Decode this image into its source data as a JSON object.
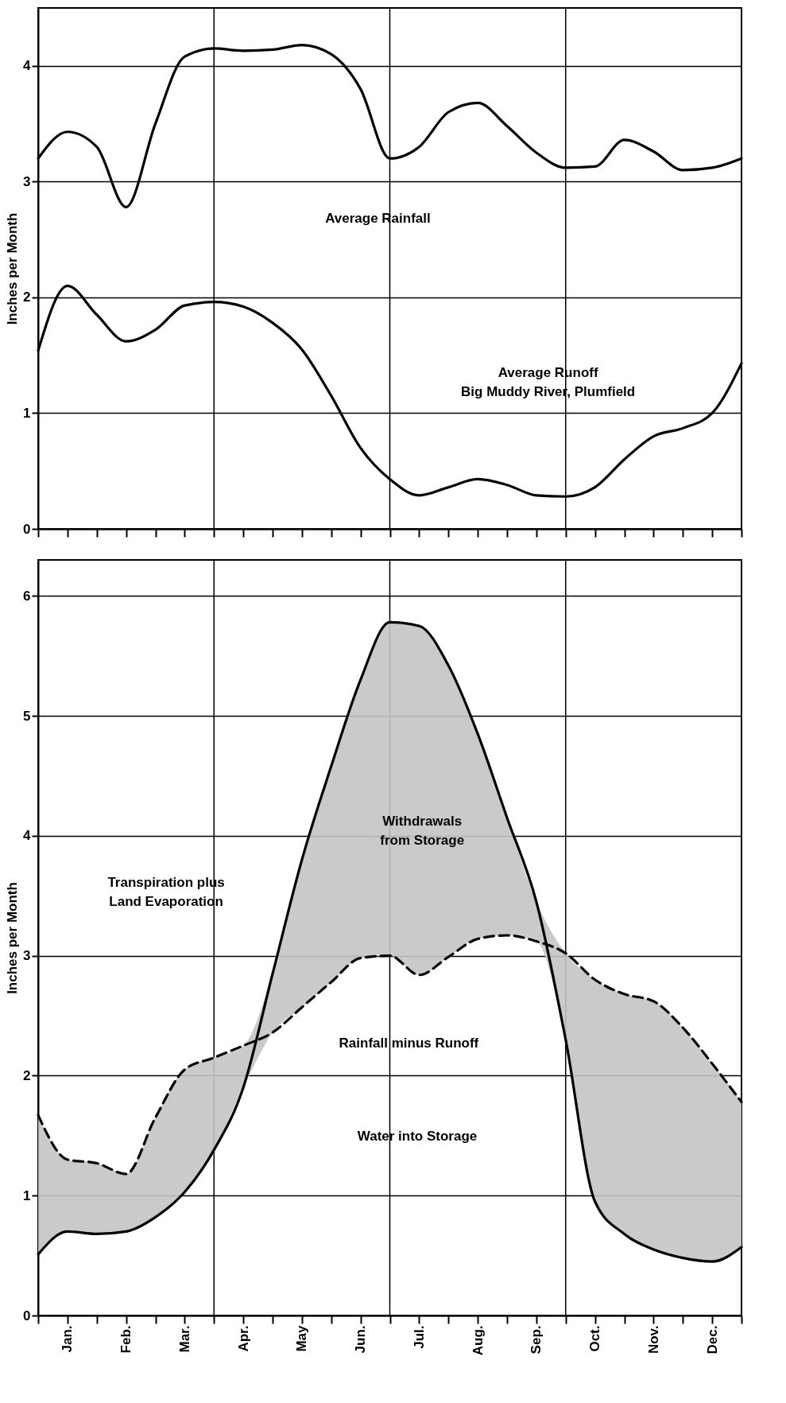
{
  "chart_data": [
    {
      "type": "line",
      "ylabel": "Inches per Month",
      "ylim": [
        0,
        4.5
      ],
      "yticks": [
        0,
        1,
        2,
        3,
        4
      ],
      "categories": [
        null,
        null,
        null,
        null,
        null,
        null,
        null,
        null,
        null,
        null,
        null,
        null,
        null,
        null,
        null,
        null,
        null,
        null,
        null,
        null,
        null,
        null,
        null,
        null,
        null
      ],
      "tick_labels": "y",
      "grid": true,
      "series": [
        {
          "color": "#000000",
          "line_style": "solid",
          "values": [
            3.2,
            3.43,
            3.3,
            2.78,
            3.5,
            4.08,
            4.15,
            4.13,
            4.14,
            4.18,
            4.1,
            3.8,
            3.2,
            3.3,
            3.6,
            3.68,
            3.48,
            3.25,
            3.12,
            3.13,
            3.36,
            3.26,
            3.1,
            3.12,
            3.2
          ]
        },
        {
          "color": "#000000",
          "line_style": "solid",
          "values": [
            1.54,
            2.1,
            1.85,
            1.62,
            1.72,
            1.93,
            1.96,
            1.92,
            1.78,
            1.55,
            1.15,
            0.7,
            0.43,
            0.29,
            0.36,
            0.43,
            0.38,
            0.29,
            0.28,
            0.36,
            0.6,
            0.8,
            0.87,
            1.0,
            1.43
          ]
        }
      ],
      "annotations": [
        "Average Rainfall",
        "Average Runoff\nBig Muddy River, Plumfield"
      ]
    },
    {
      "type": "line",
      "ylabel": "Inches per Month",
      "ylim": [
        0,
        6.3
      ],
      "yticks": [
        0,
        1,
        2,
        3,
        4,
        5,
        6
      ],
      "categories": [
        null,
        "Jan.",
        null,
        "Feb.",
        null,
        "Mar.",
        null,
        "Apr.",
        null,
        "May",
        null,
        "Jun.",
        null,
        "Jul.",
        null,
        "Aug.",
        null,
        "Sep.",
        null,
        "Oct.",
        null,
        "Nov.",
        null,
        "Dec.",
        null
      ],
      "grid": true,
      "series": [
        {
          "color": "#000000",
          "line_style": "solid",
          "values": [
            0.51,
            0.7,
            0.68,
            0.7,
            0.82,
            1.03,
            1.38,
            1.9,
            2.85,
            3.8,
            4.58,
            5.3,
            5.78,
            5.75,
            5.42,
            4.85,
            4.15,
            3.45,
            2.3,
            0.95,
            0.68,
            0.55,
            0.48,
            0.45,
            0.57
          ],
          "lower": [
            0.51,
            0.7,
            0.68,
            0.7,
            0.82,
            1.03,
            1.38,
            1.9,
            2.36,
            2.57,
            2.78,
            2.98,
            3.0,
            2.84,
            2.99,
            3.14,
            3.17,
            3.12,
            2.3,
            0.95,
            0.68,
            0.55,
            0.48,
            0.45,
            0.57
          ],
          "upper": [
            1.67,
            1.3,
            1.27,
            1.18,
            1.65,
            2.05,
            2.15,
            2.25,
            2.85,
            3.8,
            4.58,
            5.3,
            5.78,
            5.75,
            5.42,
            4.85,
            4.15,
            3.45,
            3.02,
            2.8,
            2.68,
            2.62,
            2.4,
            2.1,
            1.78
          ]
        },
        {
          "color": "#000000",
          "line_style": "dashed",
          "values": [
            1.67,
            1.3,
            1.27,
            1.18,
            1.65,
            2.05,
            2.15,
            2.25,
            2.36,
            2.57,
            2.78,
            2.98,
            3.0,
            2.84,
            2.99,
            3.14,
            3.17,
            3.12,
            3.02,
            2.8,
            2.68,
            2.62,
            2.4,
            2.1,
            1.78
          ]
        }
      ],
      "annotations": [
        "Transpiration plus\nLand Evaporation",
        "Withdrawals\nfrom  Storage",
        "Rainfall minus Runoff",
        "Water into Storage"
      ]
    }
  ]
}
